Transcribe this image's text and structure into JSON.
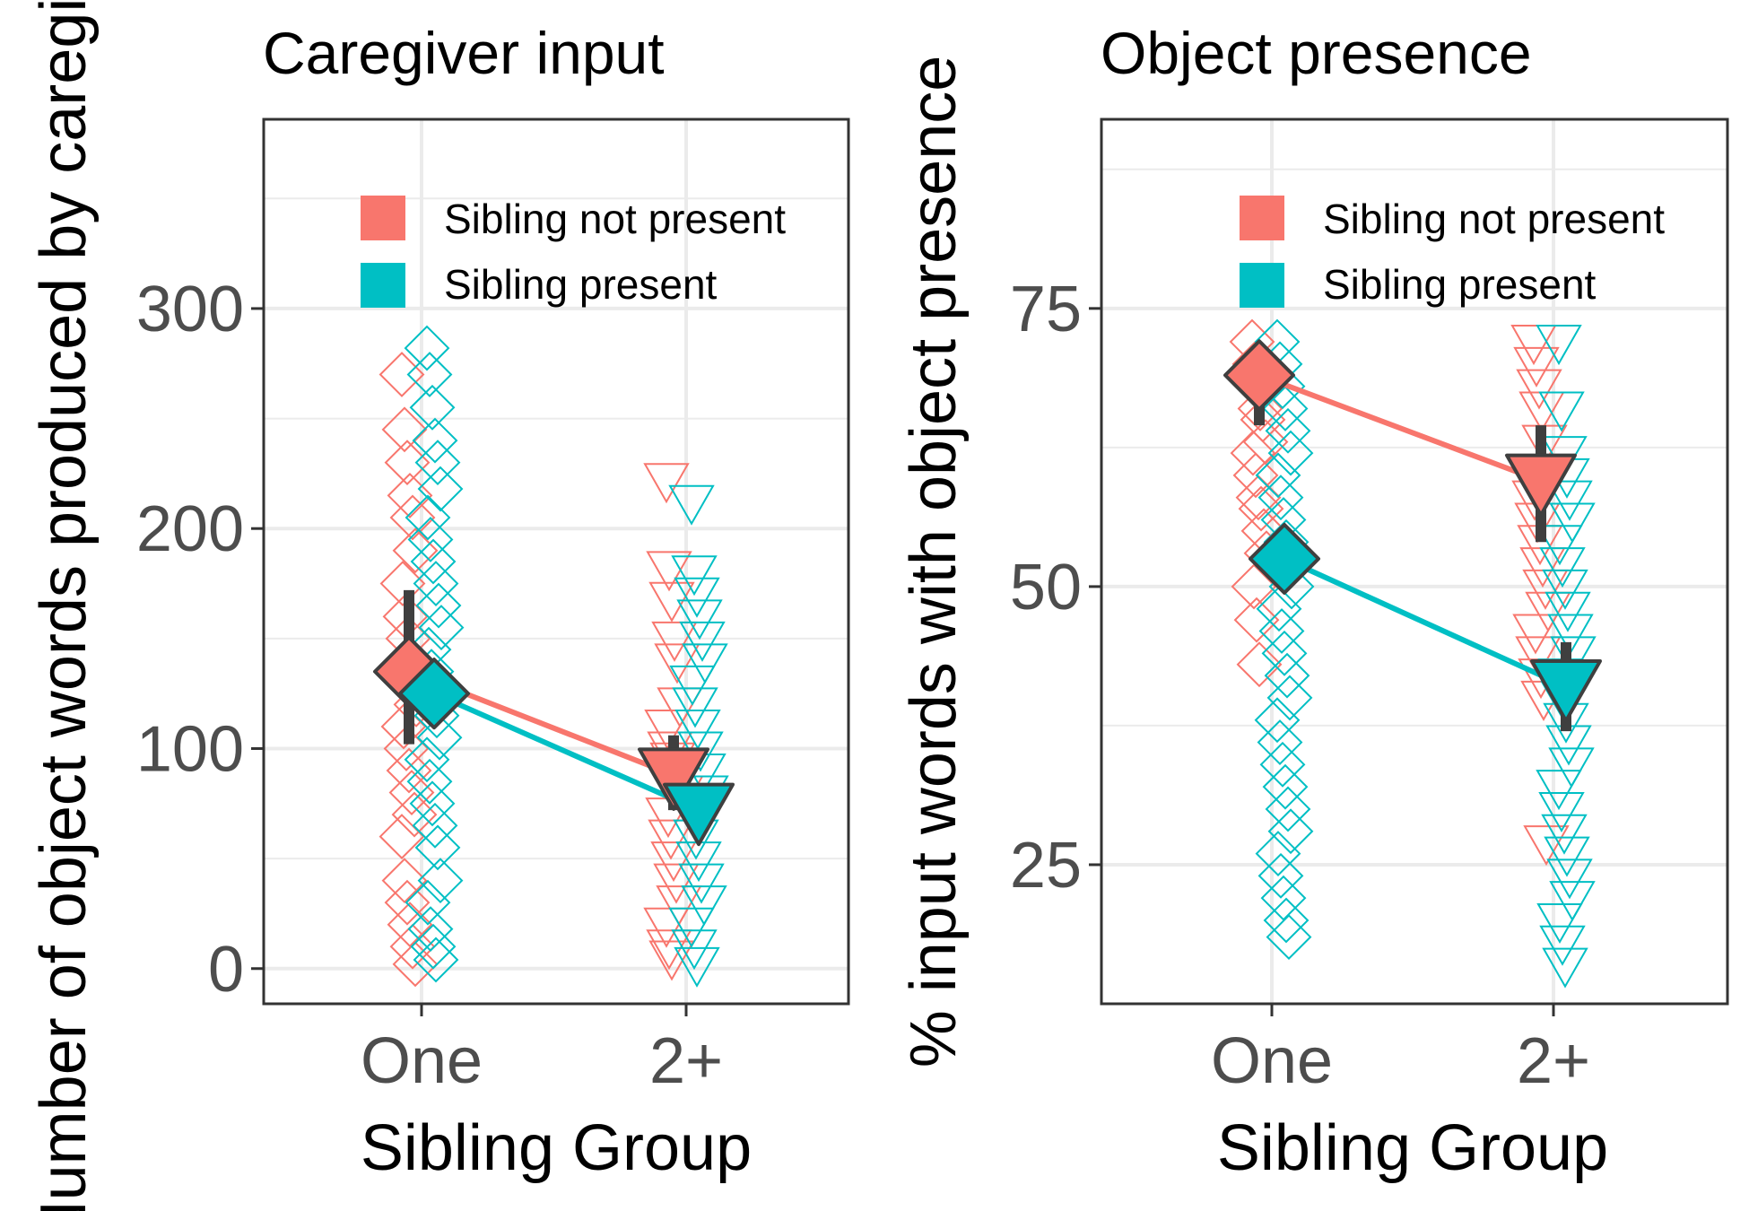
{
  "colors": {
    "not_present": "#F8766D",
    "present": "#00BFC4",
    "mean_stroke": "#3F3F3F",
    "grid": "#EBEBEB",
    "text": "#4D4D4D"
  },
  "chart_data": [
    {
      "type": "scatter",
      "title": "Caregiver input",
      "xlabel": "Sibling Group",
      "ylabel": "Number of object words produced by caregivers",
      "categories": [
        "One",
        "2+"
      ],
      "yticks": [
        0,
        100,
        200,
        300
      ],
      "ylim": [
        -16,
        386
      ],
      "grid": true,
      "legend": {
        "placement": "top-right",
        "entries": [
          "Sibling not present",
          "Sibling present"
        ]
      },
      "series": [
        {
          "name": "Sibling not present",
          "color": "#F8766D",
          "points": [
            {
              "category": "One",
              "values": [
                270,
                245,
                230,
                215,
                205,
                190,
                175,
                160,
                150,
                140,
                130,
                120,
                110,
                100,
                90,
                80,
                70,
                60,
                40,
                30,
                20,
                10,
                2
              ]
            },
            {
              "category": "2+",
              "values": [
                222,
                182,
                168,
                150,
                140,
                120,
                110,
                100,
                95,
                90,
                85,
                80,
                70,
                60,
                50,
                40,
                30,
                20,
                10,
                5
              ]
            }
          ],
          "means": [
            135,
            88
          ],
          "errors": [
            [
              102,
              172
            ],
            [
              72,
              106
            ]
          ]
        },
        {
          "name": "Sibling present",
          "color": "#00BFC4",
          "points": [
            {
              "category": "One",
              "values": [
                282,
                270,
                255,
                240,
                230,
                218,
                205,
                195,
                185,
                175,
                165,
                155,
                145,
                135,
                125,
                115,
                105,
                95,
                85,
                75,
                65,
                55,
                40,
                30,
                18,
                10,
                4
              ]
            },
            {
              "category": "2+",
              "values": [
                212,
                180,
                170,
                160,
                150,
                140,
                130,
                120,
                110,
                100,
                90,
                80,
                70,
                60,
                50,
                40,
                30,
                20,
                10,
                2
              ]
            }
          ],
          "means": [
            125,
            72
          ],
          "errors": [
            [
              112,
              138
            ],
            [
              62,
              82
            ]
          ]
        }
      ]
    },
    {
      "type": "scatter",
      "title": "Object presence",
      "xlabel": "Sibling Group",
      "ylabel": "% input words with object presence",
      "categories": [
        "One",
        "2+"
      ],
      "yticks": [
        25,
        50,
        75
      ],
      "ylim": [
        12.5,
        92
      ],
      "grid": true,
      "legend": {
        "placement": "top-right",
        "entries": [
          "Sibling not present",
          "Sibling present"
        ]
      },
      "series": [
        {
          "name": "Sibling not present",
          "color": "#F8766D",
          "points": [
            {
              "category": "One",
              "values": [
                72,
                70,
                68,
                66,
                65,
                63,
                62,
                60,
                58,
                57,
                55,
                53,
                50,
                47,
                43
              ]
            },
            {
              "category": "2+",
              "values": [
                72,
                70,
                68,
                66,
                63,
                60,
                58,
                56,
                54,
                52,
                50,
                48,
                46,
                44,
                42,
                40,
                27
              ]
            }
          ],
          "means": [
            69,
            59.5
          ],
          "errors": [
            [
              64.5,
              71.5
            ],
            [
              54,
              64.5
            ]
          ]
        },
        {
          "name": "Sibling present",
          "color": "#00BFC4",
          "points": [
            {
              "category": "One",
              "values": [
                72,
                70,
                68,
                66,
                64,
                62,
                60,
                58,
                56,
                54,
                52,
                50,
                48,
                46,
                44,
                42,
                40,
                38,
                36,
                34,
                32,
                30,
                28,
                26,
                24,
                22,
                20,
                18.5
              ]
            },
            {
              "category": "2+",
              "values": [
                72,
                66,
                62,
                60,
                58,
                56,
                54,
                52,
                50,
                48,
                46,
                44,
                42,
                40,
                38,
                36,
                34,
                32,
                30,
                28,
                26,
                24,
                22,
                20,
                18,
                16
              ]
            }
          ],
          "means": [
            52.5,
            41
          ],
          "errors": [
            [
              50.5,
              54.5
            ],
            [
              37,
              45
            ]
          ]
        }
      ]
    }
  ]
}
